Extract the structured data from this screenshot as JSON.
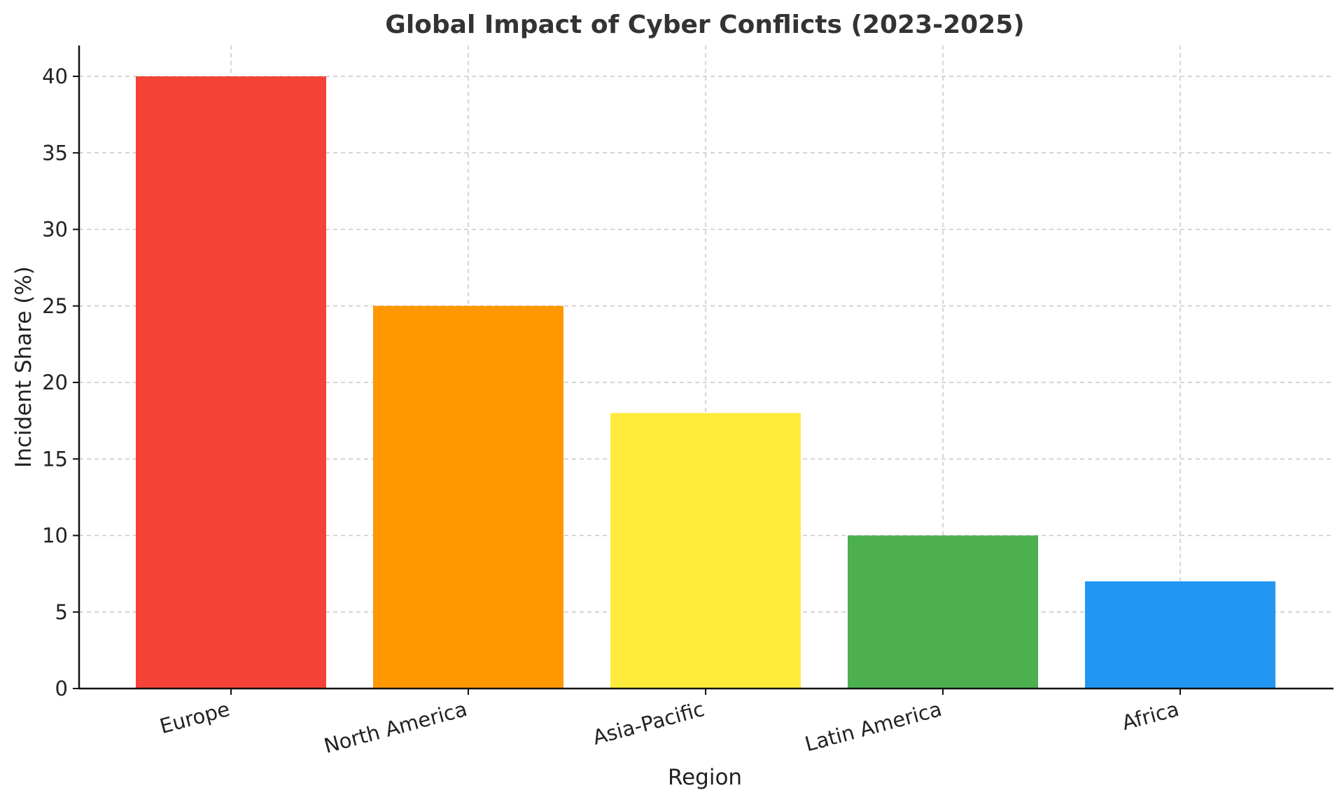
{
  "chart_data": {
    "type": "bar",
    "title": "Global Impact of Cyber Conflicts (2023-2025)",
    "xlabel": "Region",
    "ylabel": "Incident Share (%)",
    "categories": [
      "Europe",
      "North America",
      "Asia-Pacific",
      "Latin America",
      "Africa"
    ],
    "values": [
      40,
      25,
      18,
      10,
      7
    ],
    "colors": [
      "#f44336",
      "#ff9800",
      "#ffeb3b",
      "#4caf50",
      "#2196f3"
    ],
    "ylim": [
      0,
      42
    ],
    "yticks": [
      0,
      5,
      10,
      15,
      20,
      25,
      30,
      35,
      40
    ],
    "grid": true,
    "xtick_rotation": 15
  }
}
